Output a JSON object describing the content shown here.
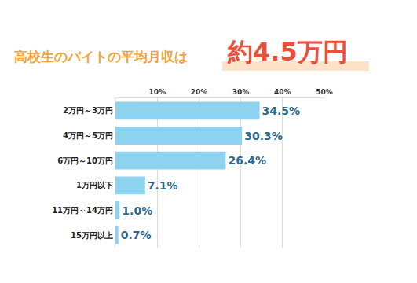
{
  "chart_data": {
    "type": "bar",
    "orientation": "horizontal",
    "title": "高校生のバイトの平均月収は",
    "subtitle": "約4.5万円",
    "categories": [
      "2万円～3万円",
      "4万円～5万円",
      "6万円～10万円",
      "1万円以下",
      "11万円～14万円",
      "15万円以上"
    ],
    "values": [
      34.5,
      30.3,
      26.4,
      7.1,
      1.0,
      0.7
    ],
    "value_labels": [
      "34.5%",
      "30.3%",
      "26.4%",
      "7.1%",
      "1.0%",
      "0.7%"
    ],
    "data_labels": true,
    "color": "#8dd2ee",
    "xlim": [
      0,
      50
    ],
    "xticks": [
      {
        "value": 10,
        "label": "10%"
      },
      {
        "value": 20,
        "label": "20%"
      },
      {
        "value": 30,
        "label": "30%"
      },
      {
        "value": 40,
        "label": "40%"
      },
      {
        "value": 50,
        "label": "50%"
      }
    ],
    "grid": true
  }
}
